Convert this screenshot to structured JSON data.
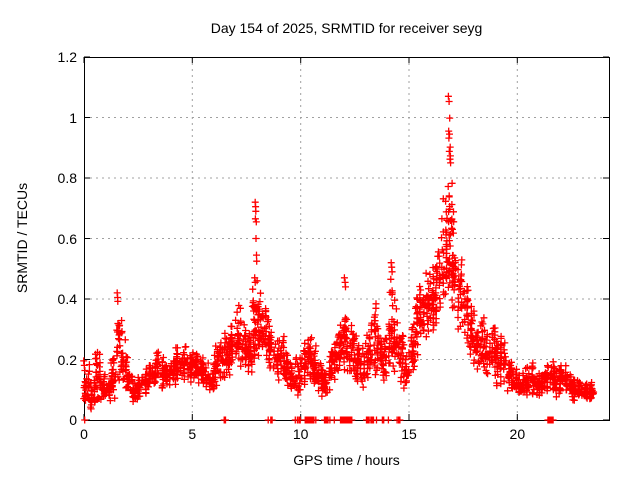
{
  "chart_data": {
    "type": "scatter",
    "title": "Day 154 of 2025, SRMTID for receiver seyg",
    "xlabel": "GPS time / hours",
    "ylabel": "SRMTID / TECUs",
    "xlim": [
      0,
      24.23
    ],
    "ylim": [
      0,
      1.2
    ],
    "xticks": [
      0,
      5,
      10,
      15,
      20
    ],
    "xtick_labels": [
      "0",
      "5",
      "10",
      "15",
      "20"
    ],
    "yticks": [
      0,
      0.2,
      0.4,
      0.6,
      0.8,
      1,
      1.2
    ],
    "ytick_labels": [
      "0",
      "0.2",
      "0.4",
      "0.6",
      "0.8",
      "1",
      "1.2"
    ],
    "grid": true,
    "legend": "none",
    "marker": "plus",
    "marker_color": "#ff0000",
    "grid_color": "#a0a0a0",
    "border_color": "#000000",
    "text_color": "#000000",
    "series_name": "SRMTID",
    "point_bands": [
      [
        0.0,
        0.25,
        0.04,
        0.22,
        30
      ],
      [
        0.25,
        0.5,
        0.03,
        0.15,
        26
      ],
      [
        0.5,
        0.75,
        0.05,
        0.26,
        28
      ],
      [
        0.75,
        1.0,
        0.05,
        0.17,
        24
      ],
      [
        1.0,
        1.25,
        0.06,
        0.14,
        22
      ],
      [
        1.25,
        1.5,
        0.07,
        0.22,
        24
      ],
      [
        1.5,
        1.75,
        0.1,
        0.38,
        26
      ],
      [
        1.75,
        2.0,
        0.09,
        0.28,
        24
      ],
      [
        2.0,
        2.25,
        0.08,
        0.17,
        22
      ],
      [
        2.25,
        2.5,
        0.06,
        0.14,
        22
      ],
      [
        2.5,
        2.75,
        0.07,
        0.15,
        22
      ],
      [
        2.75,
        3.0,
        0.08,
        0.17,
        22
      ],
      [
        3.0,
        3.25,
        0.1,
        0.2,
        24
      ],
      [
        3.25,
        3.5,
        0.11,
        0.23,
        24
      ],
      [
        3.5,
        3.75,
        0.1,
        0.21,
        24
      ],
      [
        3.75,
        4.0,
        0.1,
        0.19,
        24
      ],
      [
        4.0,
        4.25,
        0.1,
        0.21,
        24
      ],
      [
        4.25,
        4.5,
        0.11,
        0.25,
        24
      ],
      [
        4.5,
        4.75,
        0.12,
        0.26,
        24
      ],
      [
        4.75,
        5.0,
        0.12,
        0.22,
        24
      ],
      [
        5.0,
        5.25,
        0.13,
        0.24,
        24
      ],
      [
        5.25,
        5.5,
        0.12,
        0.22,
        24
      ],
      [
        5.5,
        5.75,
        0.1,
        0.19,
        22
      ],
      [
        5.75,
        6.0,
        0.09,
        0.17,
        22
      ],
      [
        6.0,
        6.25,
        0.1,
        0.26,
        24
      ],
      [
        6.25,
        6.5,
        0.11,
        0.28,
        24
      ],
      [
        6.5,
        6.75,
        0.14,
        0.3,
        26
      ],
      [
        6.75,
        7.0,
        0.16,
        0.33,
        26
      ],
      [
        7.0,
        7.25,
        0.17,
        0.4,
        28
      ],
      [
        7.25,
        7.5,
        0.15,
        0.34,
        26
      ],
      [
        7.5,
        7.75,
        0.14,
        0.3,
        24
      ],
      [
        7.75,
        8.0,
        0.18,
        0.45,
        28
      ],
      [
        8.0,
        8.25,
        0.2,
        0.44,
        28
      ],
      [
        8.25,
        8.5,
        0.2,
        0.4,
        26
      ],
      [
        8.5,
        8.75,
        0.15,
        0.33,
        24
      ],
      [
        8.75,
        9.0,
        0.13,
        0.28,
        24
      ],
      [
        9.0,
        9.25,
        0.12,
        0.3,
        24
      ],
      [
        9.25,
        9.5,
        0.1,
        0.26,
        24
      ],
      [
        9.5,
        9.75,
        0.07,
        0.2,
        22
      ],
      [
        9.75,
        10.0,
        0.04,
        0.22,
        22
      ],
      [
        10.0,
        10.25,
        0.09,
        0.27,
        24
      ],
      [
        10.25,
        10.5,
        0.11,
        0.3,
        24
      ],
      [
        10.5,
        10.75,
        0.1,
        0.25,
        24
      ],
      [
        10.75,
        11.0,
        0.08,
        0.22,
        22
      ],
      [
        11.0,
        11.25,
        0.06,
        0.2,
        22
      ],
      [
        11.25,
        11.5,
        0.09,
        0.25,
        24
      ],
      [
        11.5,
        11.75,
        0.12,
        0.3,
        24
      ],
      [
        11.75,
        12.0,
        0.14,
        0.34,
        26
      ],
      [
        12.0,
        12.25,
        0.15,
        0.42,
        28
      ],
      [
        12.25,
        12.5,
        0.12,
        0.34,
        24
      ],
      [
        12.5,
        12.75,
        0.1,
        0.28,
        24
      ],
      [
        12.75,
        13.0,
        0.08,
        0.25,
        22
      ],
      [
        13.0,
        13.25,
        0.1,
        0.3,
        24
      ],
      [
        13.25,
        13.5,
        0.14,
        0.4,
        24
      ],
      [
        13.5,
        13.75,
        0.12,
        0.34,
        24
      ],
      [
        13.75,
        14.0,
        0.1,
        0.3,
        24
      ],
      [
        14.0,
        14.25,
        0.14,
        0.45,
        26
      ],
      [
        14.25,
        14.5,
        0.14,
        0.4,
        24
      ],
      [
        14.5,
        14.75,
        0.1,
        0.3,
        24
      ],
      [
        14.75,
        15.0,
        0.08,
        0.26,
        22
      ],
      [
        15.0,
        15.25,
        0.14,
        0.35,
        24
      ],
      [
        15.25,
        15.5,
        0.18,
        0.44,
        26
      ],
      [
        15.5,
        15.75,
        0.24,
        0.46,
        28
      ],
      [
        15.75,
        16.0,
        0.25,
        0.5,
        28
      ],
      [
        16.0,
        16.25,
        0.27,
        0.52,
        28
      ],
      [
        16.25,
        16.5,
        0.3,
        0.62,
        30
      ],
      [
        16.5,
        16.75,
        0.35,
        0.78,
        32
      ],
      [
        16.75,
        17.0,
        0.38,
        0.84,
        32
      ],
      [
        17.0,
        17.25,
        0.33,
        0.7,
        30
      ],
      [
        17.25,
        17.5,
        0.28,
        0.55,
        28
      ],
      [
        17.5,
        17.75,
        0.24,
        0.46,
        26
      ],
      [
        17.75,
        18.0,
        0.2,
        0.38,
        24
      ],
      [
        18.0,
        18.25,
        0.15,
        0.33,
        24
      ],
      [
        18.25,
        18.5,
        0.14,
        0.35,
        24
      ],
      [
        18.5,
        18.75,
        0.12,
        0.3,
        24
      ],
      [
        18.75,
        19.0,
        0.12,
        0.33,
        24
      ],
      [
        19.0,
        19.25,
        0.1,
        0.28,
        24
      ],
      [
        19.25,
        19.5,
        0.1,
        0.3,
        24
      ],
      [
        19.5,
        19.75,
        0.08,
        0.2,
        22
      ],
      [
        19.75,
        20.0,
        0.07,
        0.18,
        22
      ],
      [
        20.0,
        20.25,
        0.06,
        0.16,
        22
      ],
      [
        20.25,
        20.5,
        0.07,
        0.2,
        22
      ],
      [
        20.5,
        20.75,
        0.08,
        0.2,
        22
      ],
      [
        20.75,
        21.0,
        0.07,
        0.16,
        22
      ],
      [
        21.0,
        21.25,
        0.07,
        0.17,
        22
      ],
      [
        21.25,
        21.5,
        0.08,
        0.2,
        22
      ],
      [
        21.5,
        21.75,
        0.08,
        0.2,
        22
      ],
      [
        21.75,
        22.0,
        0.07,
        0.18,
        22
      ],
      [
        22.0,
        22.25,
        0.08,
        0.2,
        22
      ],
      [
        22.25,
        22.5,
        0.07,
        0.16,
        22
      ],
      [
        22.5,
        22.75,
        0.06,
        0.15,
        22
      ],
      [
        22.75,
        23.0,
        0.06,
        0.14,
        22
      ],
      [
        23.0,
        23.55,
        0.06,
        0.13,
        44
      ]
    ],
    "outliers": [
      [
        1.53,
        0.42
      ],
      [
        1.55,
        0.405
      ],
      [
        1.56,
        0.392
      ],
      [
        7.88,
        0.47
      ],
      [
        7.9,
        0.72
      ],
      [
        7.92,
        0.705
      ],
      [
        7.93,
        0.69
      ],
      [
        7.91,
        0.665
      ],
      [
        7.95,
        0.655
      ],
      [
        7.94,
        0.6
      ],
      [
        7.96,
        0.545
      ],
      [
        7.97,
        0.525
      ],
      [
        7.99,
        0.46
      ],
      [
        7.9,
        0.455
      ],
      [
        12.02,
        0.47
      ],
      [
        12.05,
        0.455
      ],
      [
        12.07,
        0.44
      ],
      [
        14.18,
        0.52
      ],
      [
        14.2,
        0.505
      ],
      [
        14.22,
        0.49
      ],
      [
        14.16,
        0.465
      ],
      [
        16.82,
        1.07
      ],
      [
        16.85,
        1.053
      ],
      [
        16.88,
        0.998
      ],
      [
        16.83,
        0.955
      ],
      [
        16.87,
        0.945
      ],
      [
        16.84,
        0.932
      ],
      [
        16.9,
        0.902
      ],
      [
        16.86,
        0.888
      ],
      [
        16.91,
        0.873
      ],
      [
        16.89,
        0.862
      ],
      [
        16.92,
        0.85
      ]
    ],
    "zero_points": [
      [
        0.03,
        1
      ],
      [
        6.5,
        2
      ],
      [
        8.5,
        1
      ],
      [
        8.65,
        2
      ],
      [
        9.75,
        1
      ],
      [
        9.85,
        1
      ],
      [
        9.95,
        2
      ],
      [
        10.3,
        4
      ],
      [
        10.45,
        1
      ],
      [
        10.55,
        3
      ],
      [
        10.7,
        1
      ],
      [
        11.1,
        1
      ],
      [
        11.2,
        3
      ],
      [
        11.35,
        1
      ],
      [
        11.55,
        1
      ],
      [
        11.9,
        3
      ],
      [
        12.05,
        2
      ],
      [
        12.2,
        4
      ],
      [
        12.3,
        3
      ],
      [
        13.1,
        3
      ],
      [
        13.3,
        3
      ],
      [
        13.5,
        1
      ],
      [
        13.8,
        2
      ],
      [
        14.05,
        1
      ],
      [
        14.45,
        1
      ],
      [
        14.55,
        2
      ],
      [
        21.5,
        4
      ],
      [
        21.62,
        2
      ]
    ]
  }
}
